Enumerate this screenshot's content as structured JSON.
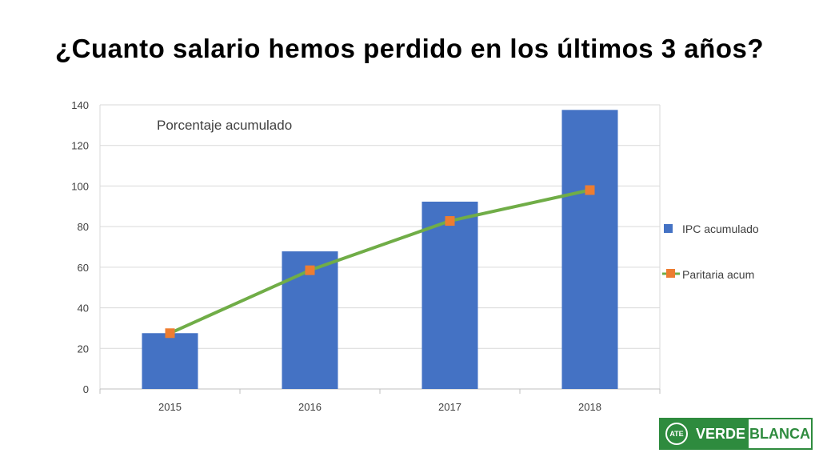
{
  "slide": {
    "title": "¿Cuanto salario hemos perdido en los últimos 3 años?"
  },
  "chart_data": {
    "type": "bar",
    "title": "",
    "annotation": "Porcentaje acumulado",
    "categories": [
      "2015",
      "2016",
      "2017",
      "2018"
    ],
    "series": [
      {
        "name": "IPC acumulado",
        "type": "bar",
        "color": "#4472c4",
        "values": [
          27.5,
          67.8,
          92.3,
          137.5
        ]
      },
      {
        "name": "Paritaria acum",
        "type": "line",
        "color": "#70ad47",
        "marker_color": "#ed7d31",
        "values": [
          27.5,
          58.5,
          82.8,
          98.0
        ]
      }
    ],
    "ylim": [
      0,
      140
    ],
    "yticks": [
      "0",
      "20",
      "40",
      "60",
      "80",
      "100",
      "120",
      "140"
    ],
    "grid": true,
    "legend_position": "right"
  },
  "logo": {
    "emblem": "ATE",
    "word1": "VERDE",
    "word2": "BLANCA"
  }
}
